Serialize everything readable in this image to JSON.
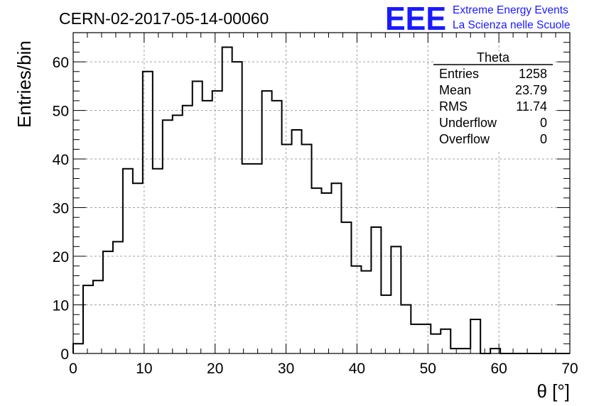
{
  "header": {
    "run_title": "CERN-02-2017-05-14-00060",
    "logo_text": "EEE",
    "logo_line1": "Extreme Energy Events",
    "logo_line2": "La Scienza nelle Scuole"
  },
  "stats_box": {
    "title": "Theta",
    "rows": [
      {
        "label": "Entries",
        "value": "1258"
      },
      {
        "label": "Mean",
        "value": "23.79"
      },
      {
        "label": "RMS",
        "value": "11.74"
      },
      {
        "label": "Underflow",
        "value": "0"
      },
      {
        "label": "Overflow",
        "value": "0"
      }
    ]
  },
  "chart_data": {
    "type": "histogram",
    "xlabel": "θ [°]",
    "ylabel": "Entries/bin",
    "xlim": [
      0,
      70
    ],
    "ylim": [
      0,
      66
    ],
    "x_ticks": [
      0,
      10,
      20,
      30,
      40,
      50,
      60,
      70
    ],
    "y_ticks": [
      0,
      10,
      20,
      30,
      40,
      50,
      60
    ],
    "grid": true,
    "bin_edges": [
      0,
      1.4,
      2.8,
      4.2,
      5.6,
      7,
      8.4,
      9.8,
      11.2,
      12.6,
      14,
      15.4,
      16.8,
      18.2,
      19.6,
      21,
      22.4,
      23.8,
      25.2,
      26.6,
      28,
      29.4,
      30.8,
      32.2,
      33.6,
      35,
      36.4,
      37.8,
      39.2,
      40.6,
      42,
      43.4,
      44.8,
      46.2,
      47.6,
      49,
      50.4,
      51.8,
      53.2,
      54.6,
      56,
      57.4,
      58.8,
      60.2,
      61.6,
      63,
      64.4,
      65.8,
      67.2,
      68.6,
      70
    ],
    "values": [
      2,
      14,
      15,
      21,
      23,
      38,
      35,
      58,
      38,
      48,
      49,
      51,
      56,
      52,
      54,
      63,
      60,
      39,
      39,
      54,
      52,
      43,
      46,
      43,
      34,
      33,
      35,
      27,
      18,
      17,
      26,
      12,
      22,
      10,
      6,
      6,
      4,
      5,
      1,
      1,
      7,
      0,
      1,
      0,
      0,
      0,
      0,
      0,
      0,
      0
    ]
  }
}
